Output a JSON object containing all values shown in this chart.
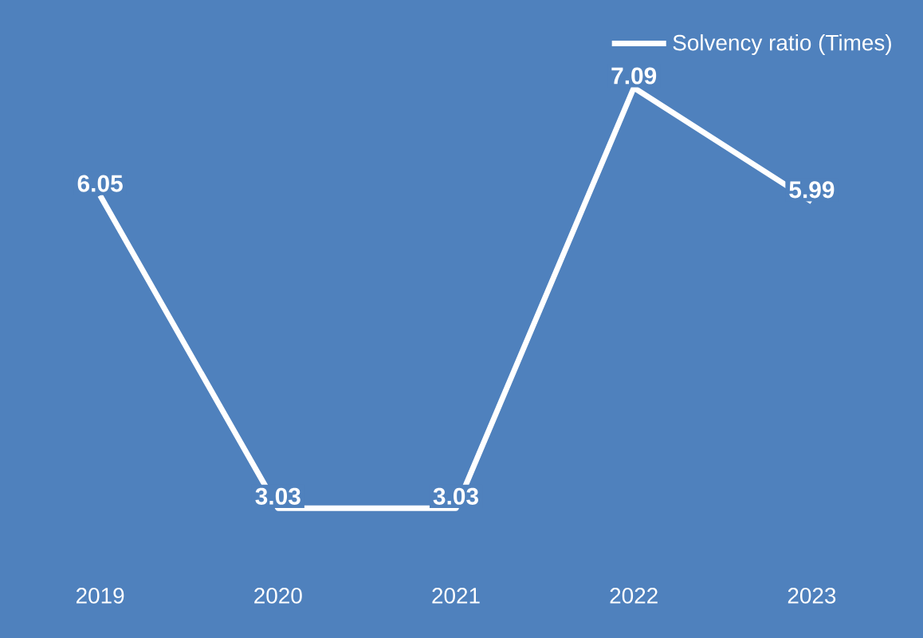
{
  "chart_data": {
    "type": "line",
    "categories": [
      "2019",
      "2020",
      "2021",
      "2022",
      "2023"
    ],
    "series": [
      {
        "name": "Solvency ratio (Times)",
        "color": "#ffffff",
        "values": [
          6.05,
          3.03,
          3.03,
          7.09,
          5.99
        ]
      }
    ],
    "tick_labels": "x",
    "data_labels": true,
    "legend": "top right",
    "marker": "none",
    "line_style": "solid"
  }
}
